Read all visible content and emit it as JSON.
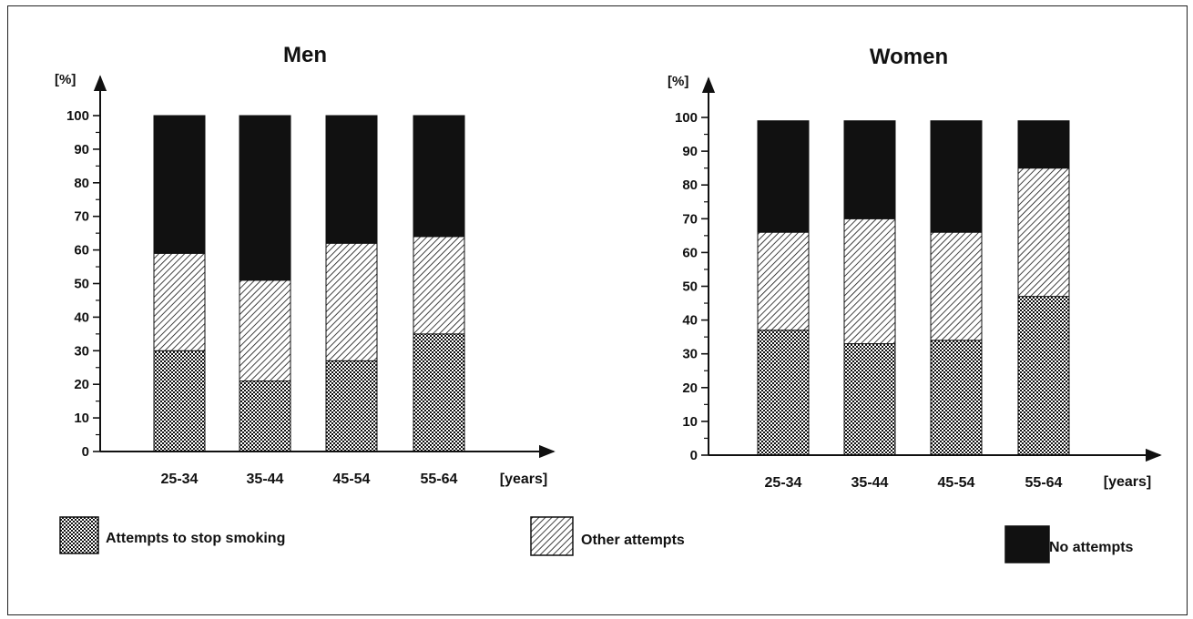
{
  "chart_data": [
    {
      "type": "bar",
      "stacked": true,
      "title": "Men",
      "ylabel": "[%]",
      "xlabel": "[years]",
      "ylim": [
        0,
        100
      ],
      "yticks": [
        0,
        10,
        20,
        30,
        40,
        50,
        60,
        70,
        80,
        90,
        100
      ],
      "categories": [
        "25-34",
        "35-44",
        "45-54",
        "55-64"
      ],
      "series": [
        {
          "name": "Attempts to stop smoking",
          "values": [
            30,
            21,
            27,
            35
          ]
        },
        {
          "name": "Other attempts",
          "values": [
            29,
            30,
            35,
            29
          ]
        },
        {
          "name": "No attempts",
          "values": [
            41,
            49,
            38,
            36
          ]
        }
      ]
    },
    {
      "type": "bar",
      "stacked": true,
      "title": "Women",
      "ylabel": "[%]",
      "xlabel": "[years]",
      "ylim": [
        0,
        100
      ],
      "yticks": [
        0,
        10,
        20,
        30,
        40,
        50,
        60,
        70,
        80,
        90,
        100
      ],
      "categories": [
        "25-34",
        "35-44",
        "45-54",
        "55-64"
      ],
      "series": [
        {
          "name": "Attempts to stop smoking",
          "values": [
            37,
            33,
            34,
            47
          ]
        },
        {
          "name": "Other attempts",
          "values": [
            29,
            37,
            32,
            38
          ]
        },
        {
          "name": "No attempts",
          "values": [
            33,
            29,
            33,
            14
          ]
        }
      ]
    }
  ],
  "legend": {
    "items": [
      {
        "label": "Attempts to stop smoking",
        "pattern": "crosshatch"
      },
      {
        "label": "Other attempts",
        "pattern": "diagonal"
      },
      {
        "label": "No attempts",
        "pattern": "solid"
      }
    ]
  },
  "colors": {
    "ink": "#111111",
    "background": "#ffffff"
  }
}
